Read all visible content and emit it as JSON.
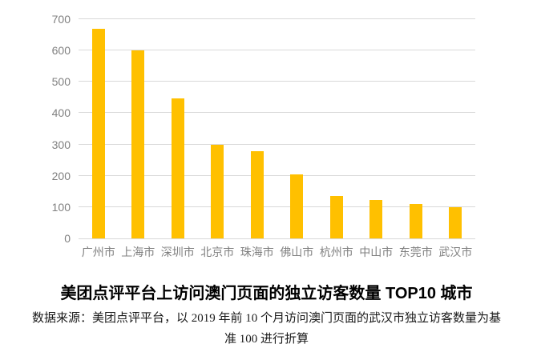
{
  "chart_data": {
    "type": "bar",
    "title": "美团点评平台上访问澳门页面的独立访客数量 TOP10 城市",
    "categories": [
      "广州市",
      "上海市",
      "深圳市",
      "北京市",
      "珠海市",
      "佛山市",
      "杭州市",
      "中山市",
      "东莞市",
      "武汉市"
    ],
    "values": [
      670,
      600,
      448,
      298,
      278,
      205,
      135,
      122,
      110,
      100
    ],
    "xlabel": "",
    "ylabel": "",
    "ylim": [
      0,
      700
    ],
    "yticks": [
      0,
      100,
      200,
      300,
      400,
      500,
      600,
      700
    ],
    "grid": true,
    "legend": false
  },
  "source": {
    "lines": [
      "数据来源：美团点评平台，以 2019 年前 10 个月访问澳门页面的武汉市独立访客数量为基",
      "准 100 进行折算"
    ]
  },
  "colors": {
    "bar": "#FFC000",
    "gridline": "#D9D9D9",
    "axis_text": "#808080",
    "title_text": "#000000"
  }
}
